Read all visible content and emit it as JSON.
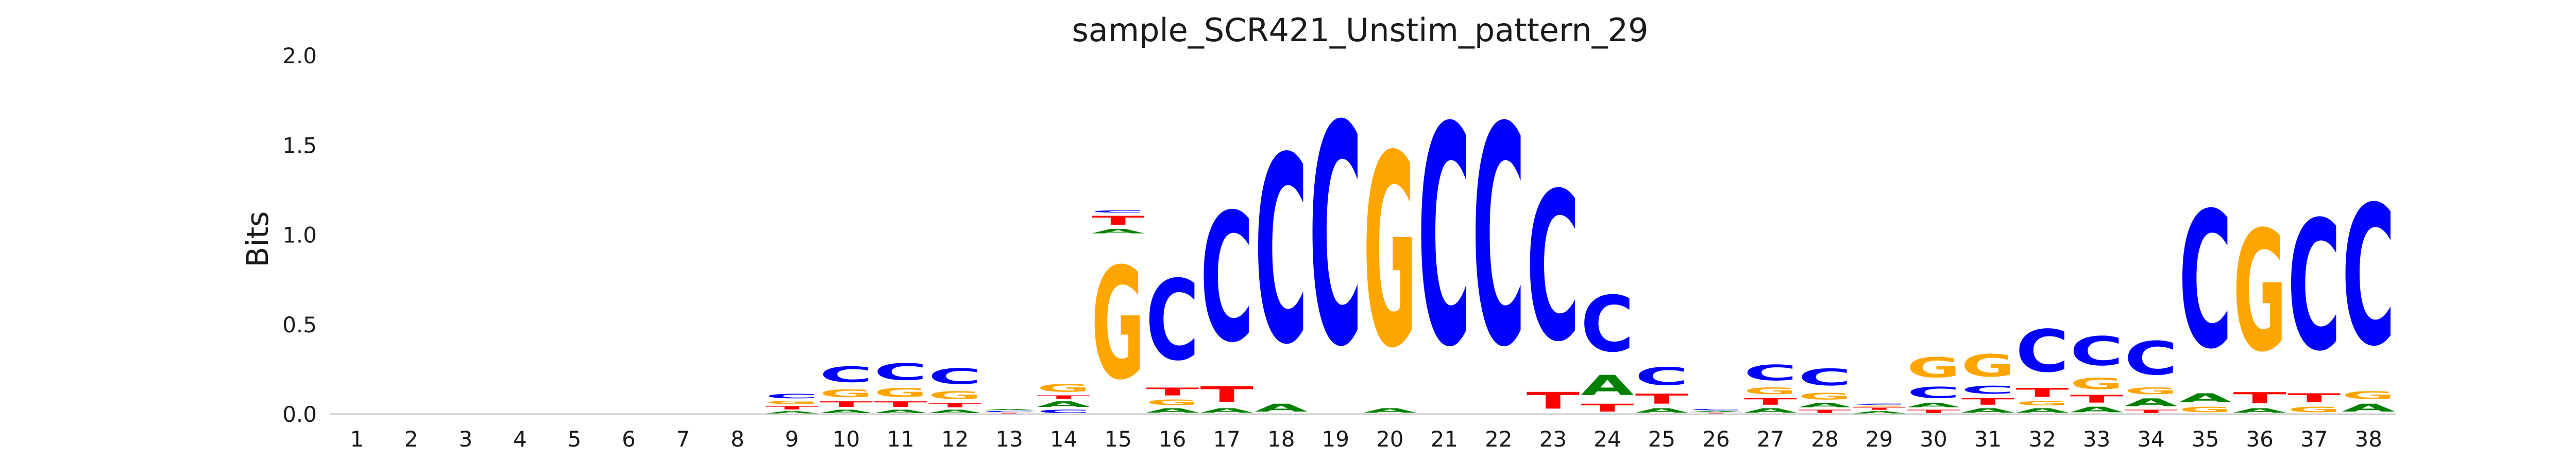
{
  "chart_data": {
    "type": "sequence-logo",
    "title": "sample_SCR421_Unstim_pattern_29",
    "xlabel": "",
    "ylabel": "Bits",
    "ylim": [
      0,
      2.0
    ],
    "yticks": [
      "0.0",
      "0.5",
      "1.0",
      "1.5",
      "2.0"
    ],
    "ytick_values": [
      0,
      0.5,
      1.0,
      1.5,
      2.0
    ],
    "grid": false,
    "letter_colors": {
      "A": "#008000",
      "C": "#0000ff",
      "G": "#ffa500",
      "T": "#ff0000"
    },
    "positions": [
      {
        "label": "1",
        "stack": []
      },
      {
        "label": "2",
        "stack": []
      },
      {
        "label": "3",
        "stack": []
      },
      {
        "label": "4",
        "stack": []
      },
      {
        "label": "5",
        "stack": []
      },
      {
        "label": "6",
        "stack": []
      },
      {
        "label": "7",
        "stack": []
      },
      {
        "label": "8",
        "stack": []
      },
      {
        "label": "9",
        "stack": [
          [
            "A",
            0.02
          ],
          [
            "T",
            0.03
          ],
          [
            "G",
            0.03
          ],
          [
            "C",
            0.04
          ]
        ]
      },
      {
        "label": "10",
        "stack": [
          [
            "A",
            0.03
          ],
          [
            "T",
            0.05
          ],
          [
            "G",
            0.07
          ],
          [
            "C",
            0.14
          ]
        ]
      },
      {
        "label": "11",
        "stack": [
          [
            "A",
            0.03
          ],
          [
            "T",
            0.05
          ],
          [
            "G",
            0.08
          ],
          [
            "C",
            0.15
          ]
        ]
      },
      {
        "label": "12",
        "stack": [
          [
            "A",
            0.03
          ],
          [
            "T",
            0.04
          ],
          [
            "G",
            0.07
          ],
          [
            "C",
            0.14
          ]
        ]
      },
      {
        "label": "13",
        "stack": [
          [
            "T",
            0.01
          ],
          [
            "C",
            0.01
          ],
          [
            "A",
            0.01
          ]
        ]
      },
      {
        "label": "14",
        "stack": [
          [
            "C",
            0.03
          ],
          [
            "A",
            0.05
          ],
          [
            "T",
            0.03
          ],
          [
            "G",
            0.07
          ]
        ]
      },
      {
        "label": "15",
        "stack": [
          [
            "G",
            1.0
          ],
          [
            "A",
            0.04
          ],
          [
            "T",
            0.08
          ],
          [
            "C",
            0.02
          ]
        ]
      },
      {
        "label": "16",
        "stack": [
          [
            "A",
            0.04
          ],
          [
            "G",
            0.05
          ],
          [
            "T",
            0.07
          ],
          [
            "C",
            0.72
          ]
        ]
      },
      {
        "label": "17",
        "stack": [
          [
            "A",
            0.04
          ],
          [
            "T",
            0.14
          ],
          [
            "C",
            1.15
          ]
        ]
      },
      {
        "label": "18",
        "stack": [
          [
            "A",
            0.07
          ],
          [
            "C",
            1.67
          ]
        ]
      },
      {
        "label": "19",
        "stack": [
          [
            "C",
            1.97
          ]
        ]
      },
      {
        "label": "20",
        "stack": [
          [
            "A",
            0.04
          ],
          [
            "G",
            1.72
          ]
        ]
      },
      {
        "label": "21",
        "stack": [
          [
            "C",
            1.96
          ]
        ]
      },
      {
        "label": "22",
        "stack": [
          [
            "C",
            1.96
          ]
        ]
      },
      {
        "label": "23",
        "stack": [
          [
            "T",
            0.15
          ],
          [
            "C",
            1.33
          ]
        ]
      },
      {
        "label": "24",
        "stack": [
          [
            "T",
            0.07
          ],
          [
            "A",
            0.18
          ],
          [
            "C",
            0.5
          ]
        ]
      },
      {
        "label": "25",
        "stack": [
          [
            "A",
            0.04
          ],
          [
            "T",
            0.09
          ],
          [
            "C",
            0.16
          ]
        ]
      },
      {
        "label": "26",
        "stack": [
          [
            "T",
            0.01
          ],
          [
            "A",
            0.01
          ],
          [
            "C",
            0.01
          ]
        ]
      },
      {
        "label": "27",
        "stack": [
          [
            "A",
            0.04
          ],
          [
            "T",
            0.06
          ],
          [
            "G",
            0.06
          ],
          [
            "C",
            0.14
          ]
        ]
      },
      {
        "label": "28",
        "stack": [
          [
            "T",
            0.03
          ],
          [
            "A",
            0.04
          ],
          [
            "G",
            0.06
          ],
          [
            "C",
            0.15
          ]
        ]
      },
      {
        "label": "29",
        "stack": [
          [
            "A",
            0.02
          ],
          [
            "T",
            0.02
          ],
          [
            "G",
            0.01
          ],
          [
            "C",
            0.01
          ]
        ]
      },
      {
        "label": "30",
        "stack": [
          [
            "T",
            0.03
          ],
          [
            "A",
            0.04
          ],
          [
            "C",
            0.1
          ],
          [
            "G",
            0.18
          ]
        ]
      },
      {
        "label": "31",
        "stack": [
          [
            "A",
            0.04
          ],
          [
            "T",
            0.06
          ],
          [
            "C",
            0.07
          ],
          [
            "G",
            0.2
          ]
        ]
      },
      {
        "label": "32",
        "stack": [
          [
            "A",
            0.04
          ],
          [
            "G",
            0.04
          ],
          [
            "T",
            0.08
          ],
          [
            "C",
            0.38
          ]
        ]
      },
      {
        "label": "33",
        "stack": [
          [
            "A",
            0.05
          ],
          [
            "T",
            0.07
          ],
          [
            "G",
            0.1
          ],
          [
            "C",
            0.26
          ]
        ]
      },
      {
        "label": "34",
        "stack": [
          [
            "T",
            0.03
          ],
          [
            "A",
            0.07
          ],
          [
            "G",
            0.06
          ],
          [
            "C",
            0.3
          ]
        ]
      },
      {
        "label": "35",
        "stack": [
          [
            "G",
            0.05
          ],
          [
            "A",
            0.08
          ],
          [
            "C",
            1.22
          ]
        ]
      },
      {
        "label": "36",
        "stack": [
          [
            "A",
            0.04
          ],
          [
            "T",
            0.1
          ],
          [
            "G",
            1.08
          ]
        ]
      },
      {
        "label": "37",
        "stack": [
          [
            "G",
            0.05
          ],
          [
            "T",
            0.08
          ],
          [
            "C",
            1.16
          ]
        ]
      },
      {
        "label": "38",
        "stack": [
          [
            "A",
            0.07
          ],
          [
            "G",
            0.07
          ],
          [
            "C",
            1.25
          ]
        ]
      }
    ]
  }
}
